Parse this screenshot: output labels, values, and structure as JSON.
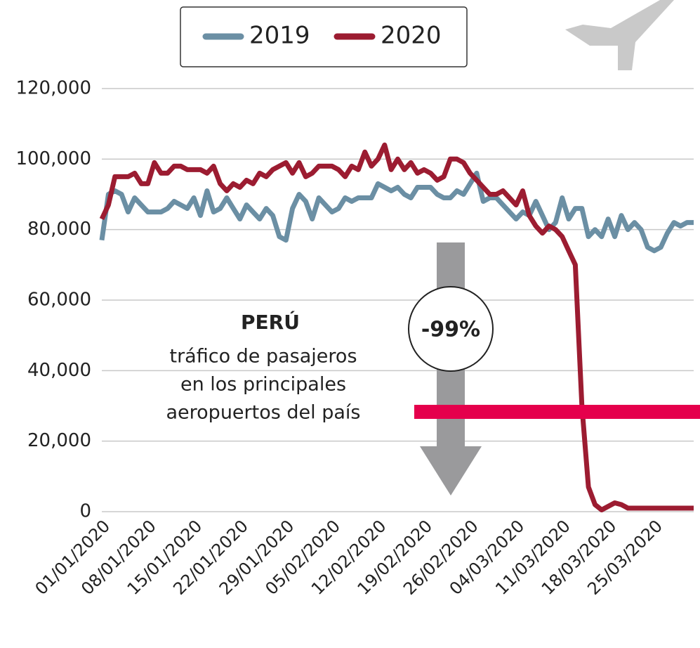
{
  "chart_data": {
    "type": "line",
    "legend": "top",
    "grid": true,
    "annotation_title": "PERÚ",
    "annotation_text": [
      "tráfico de pasajeros",
      "en los principales",
      "aeropuertos del país"
    ],
    "change_label": "-99%",
    "categories": [
      "01/01/2020",
      null,
      null,
      null,
      null,
      null,
      null,
      "08/01/2020",
      null,
      null,
      null,
      null,
      null,
      null,
      "15/01/2020",
      null,
      null,
      null,
      null,
      null,
      null,
      "22/01/2020",
      null,
      null,
      null,
      null,
      null,
      null,
      "29/01/2020",
      null,
      null,
      null,
      null,
      null,
      null,
      "05/02/2020",
      null,
      null,
      null,
      null,
      null,
      null,
      "12/02/2020",
      null,
      null,
      null,
      null,
      null,
      null,
      "19/02/2020",
      null,
      null,
      null,
      null,
      null,
      null,
      "26/02/2020",
      null,
      null,
      null,
      null,
      null,
      null,
      "04/03/2020",
      null,
      null,
      null,
      null,
      null,
      null,
      "11/03/2020",
      null,
      null,
      null,
      null,
      null,
      null,
      "18/03/2020",
      null,
      null,
      null,
      null,
      null,
      null,
      "25/03/2020",
      null,
      null,
      null,
      null,
      null,
      null
    ],
    "series": [
      {
        "name": "2019",
        "color": "#6b8fa4",
        "values": [
          77000,
          90000,
          91000,
          90000,
          85000,
          89000,
          87000,
          85000,
          85000,
          85000,
          86000,
          88000,
          87000,
          86000,
          89000,
          84000,
          91000,
          85000,
          86000,
          89000,
          86000,
          83000,
          87000,
          85000,
          83000,
          86000,
          84000,
          78000,
          77000,
          86000,
          90000,
          88000,
          83000,
          89000,
          87000,
          85000,
          86000,
          89000,
          88000,
          89000,
          89000,
          89000,
          93000,
          92000,
          91000,
          92000,
          90000,
          89000,
          92000,
          92000,
          92000,
          90000,
          89000,
          89000,
          91000,
          90000,
          93000,
          96000,
          88000,
          89000,
          89000,
          87000,
          85000,
          83000,
          85000,
          84000,
          88000,
          84000,
          80000,
          82000,
          89000,
          83000,
          86000,
          86000,
          78000,
          80000,
          78000,
          83000,
          78000,
          84000,
          80000,
          82000,
          80000,
          75000,
          74000,
          75000,
          79000,
          82000,
          81000,
          82000,
          82000
        ]
      },
      {
        "name": "2020",
        "color": "#9c1c31",
        "values": [
          83000,
          87000,
          95000,
          95000,
          95000,
          96000,
          93000,
          93000,
          99000,
          96000,
          96000,
          98000,
          98000,
          97000,
          97000,
          97000,
          96000,
          98000,
          93000,
          91000,
          93000,
          92000,
          94000,
          93000,
          96000,
          95000,
          97000,
          98000,
          99000,
          96000,
          99000,
          95000,
          96000,
          98000,
          98000,
          98000,
          97000,
          95000,
          98000,
          97000,
          102000,
          98000,
          100000,
          104000,
          97000,
          100000,
          97000,
          99000,
          96000,
          97000,
          96000,
          94000,
          95000,
          100000,
          100000,
          99000,
          96000,
          94000,
          92000,
          90000,
          90000,
          91000,
          89000,
          87000,
          91000,
          84000,
          81000,
          79000,
          81000,
          80000,
          78000,
          74000,
          70000,
          30000,
          7000,
          2000,
          500,
          1500,
          2500,
          2000,
          1000,
          1000,
          1000,
          1000,
          1000,
          1000,
          1000,
          1000,
          1000,
          1000,
          1000
        ]
      }
    ],
    "ylim": [
      0,
      120000
    ],
    "yticks": [
      0,
      {
        "value": 20000,
        "label": "20,000"
      },
      {
        "value": 40000,
        "label": "40,000"
      },
      {
        "value": 60000,
        "label": "60,000"
      },
      {
        "value": 80000,
        "label": "80,000"
      },
      {
        "value": 100000,
        "label": "100,000"
      },
      {
        "value": 120000,
        "label": "120,000"
      }
    ]
  }
}
